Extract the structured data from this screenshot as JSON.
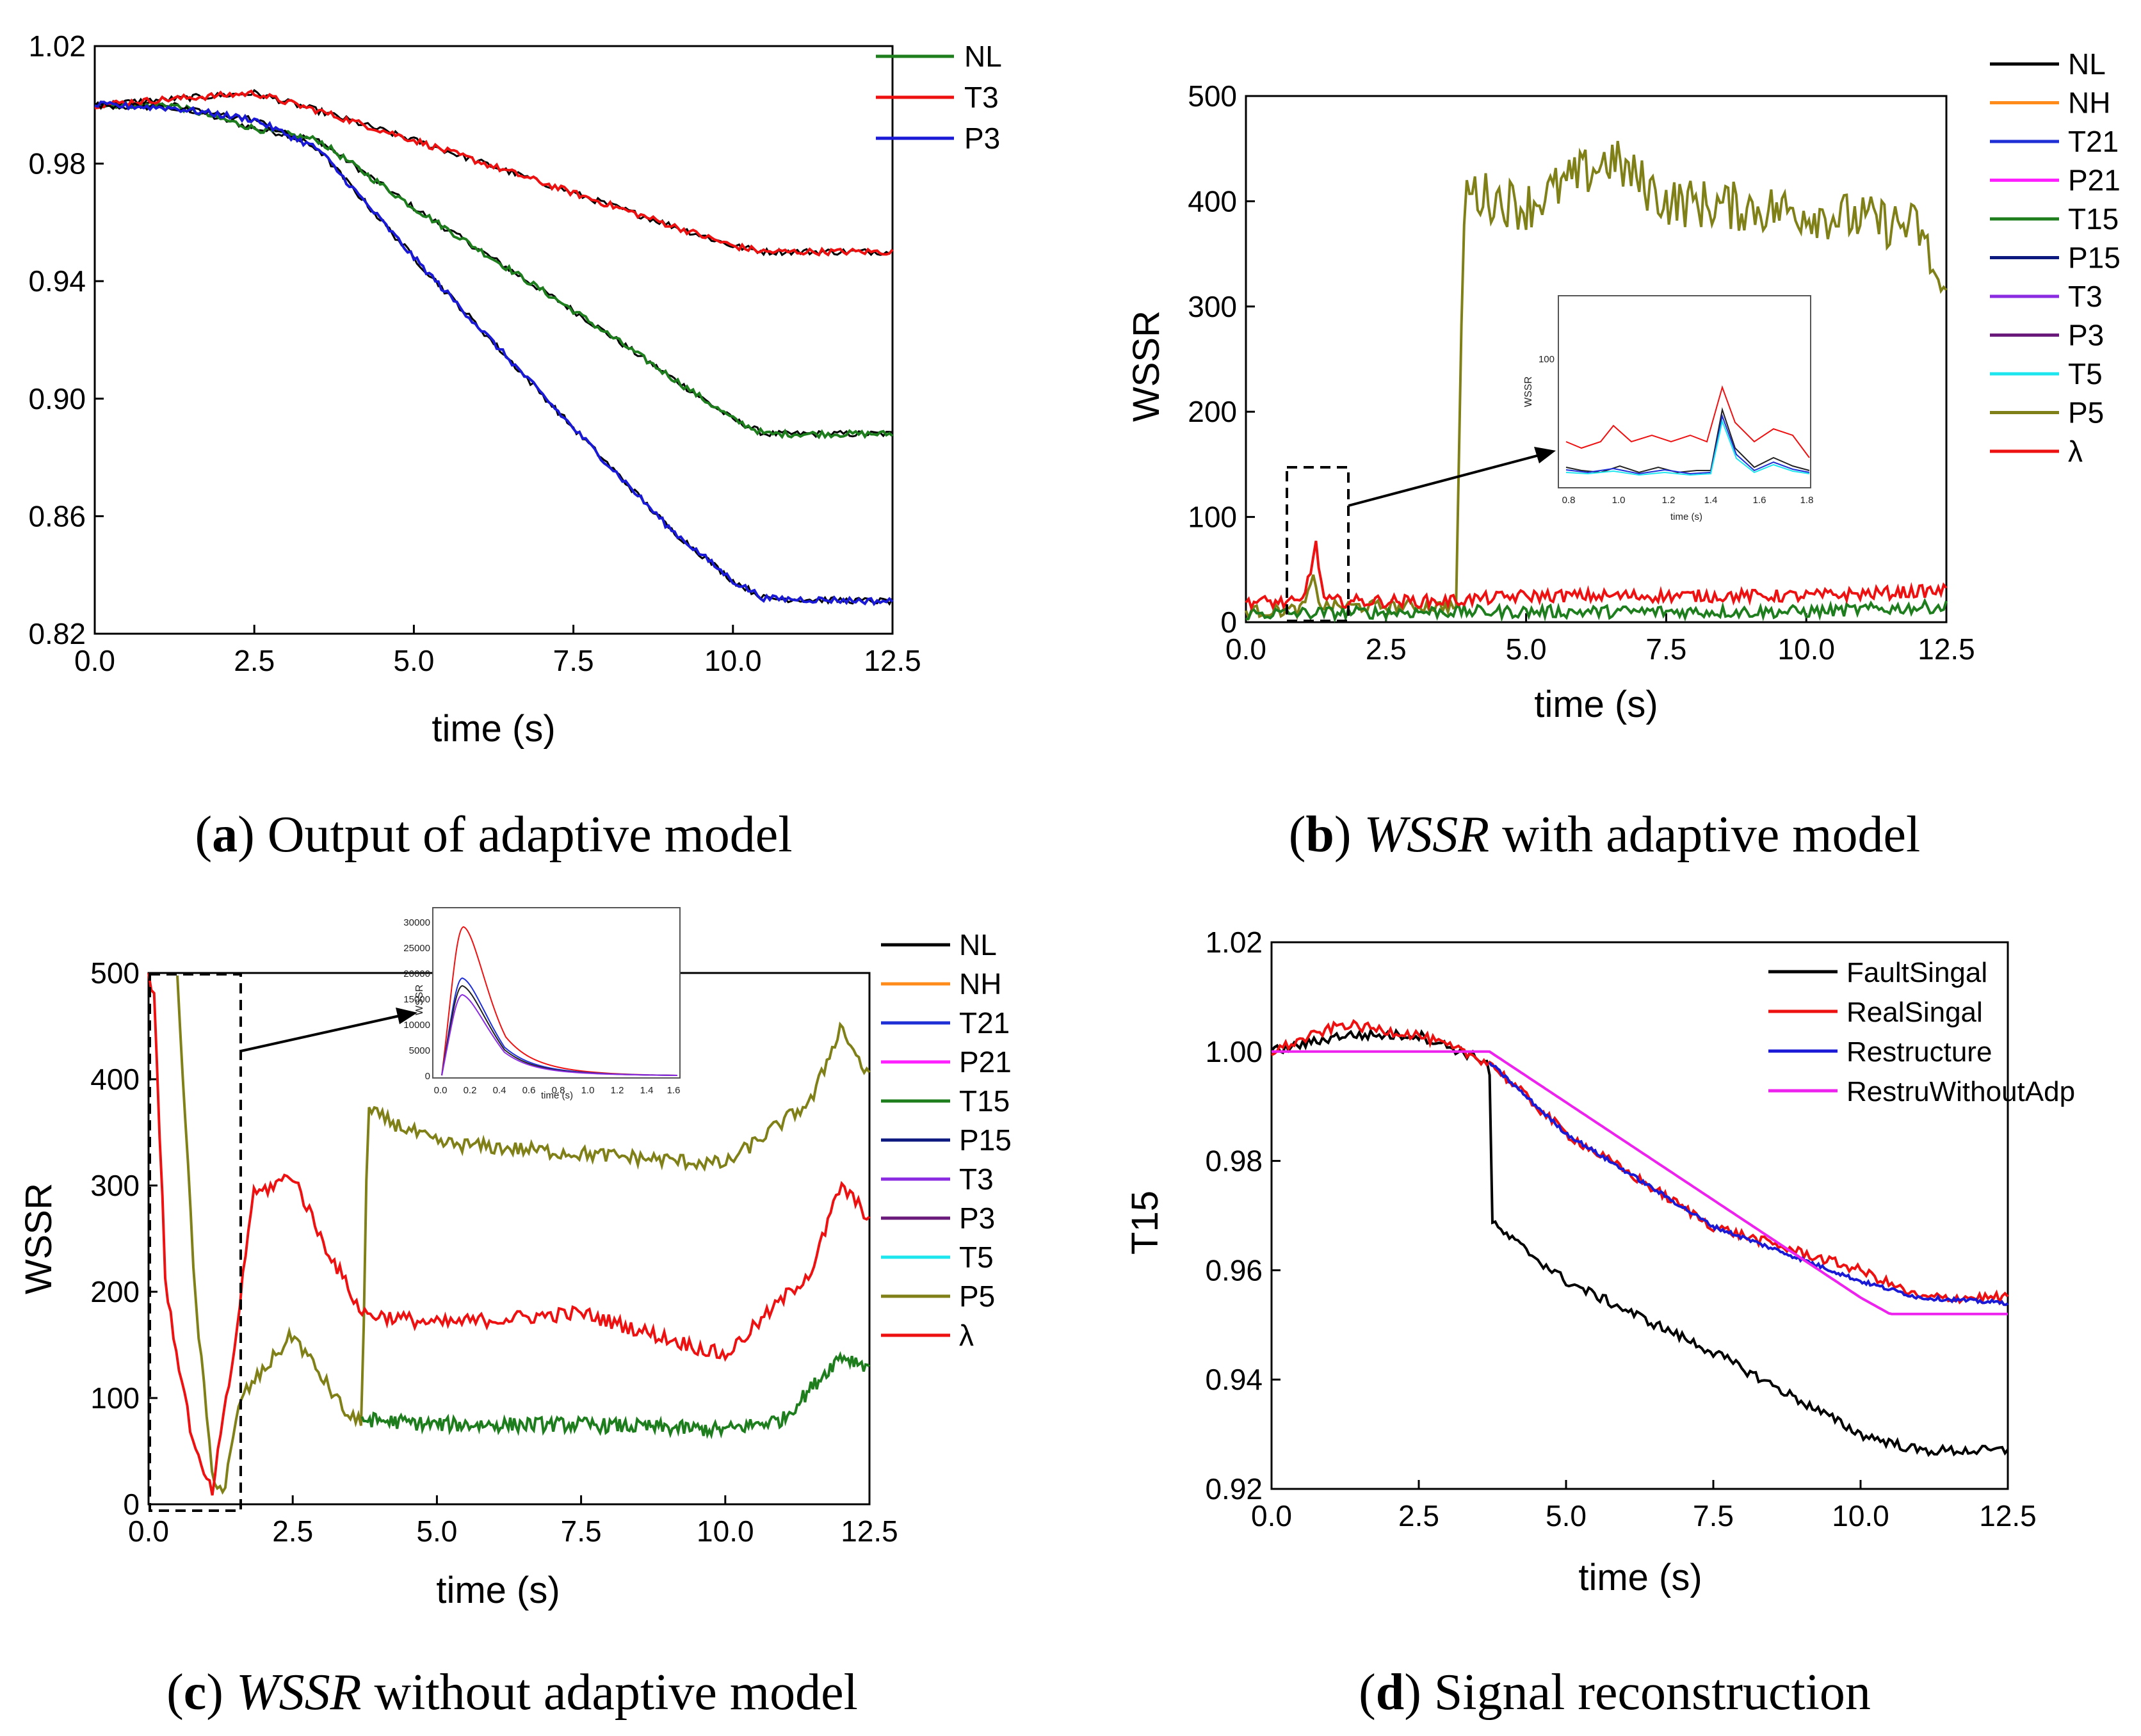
{
  "colors": {
    "NL": "#000000",
    "NH": "#ff8c1a",
    "T21": "#1f2fd6",
    "P21": "#ff20ff",
    "T15": "#1e7e1e",
    "P15": "#0c1a80",
    "T3": "#8a2be2",
    "P3": "#6a1a7a",
    "T5": "#1ee6ee",
    "P5": "#808018",
    "lambda": "#ee1111",
    "red": "#ee1111",
    "green": "#1e7e1e",
    "blue": "#1a1ad6",
    "magenta": "#ee22ee"
  },
  "chart_data": [
    {
      "id": "a",
      "type": "line",
      "caption": {
        "letter": "a",
        "text": "Output of adaptive model"
      },
      "xlabel": "time (s)",
      "ylabel": "",
      "xlim": [
        0,
        12.5
      ],
      "ylim": [
        0.82,
        1.02
      ],
      "xticks": [
        "0.0",
        "2.5",
        "5.0",
        "7.5",
        "10.0",
        "12.5"
      ],
      "yticks": [
        "0.82",
        "0.86",
        "0.90",
        "0.94",
        "0.98",
        "1.02"
      ],
      "legend": {
        "position": "top-right",
        "entries": [
          "NL",
          "T3",
          "P3"
        ]
      },
      "series": [
        {
          "name": "NL",
          "color": "#1e7e1e",
          "x": [
            0,
            1.2,
            2.5,
            3.5,
            5,
            7.5,
            10,
            10.5,
            12.5
          ],
          "y": [
            1.0,
            1.0,
            0.992,
            0.988,
            0.965,
            0.93,
            0.893,
            0.888,
            0.888
          ]
        },
        {
          "name": "T3",
          "color": "#ee1111",
          "x": [
            0,
            1.2,
            2.5,
            3.5,
            5,
            7.5,
            10,
            10.5,
            12.5
          ],
          "y": [
            1.0,
            1.002,
            1.004,
            0.998,
            0.988,
            0.97,
            0.952,
            0.95,
            0.95
          ]
        },
        {
          "name": "P3",
          "color": "#1a1ad6",
          "x": [
            0,
            1.2,
            2.5,
            3.5,
            5,
            7.5,
            9,
            10,
            10.5,
            12.5
          ],
          "y": [
            1.0,
            0.999,
            0.995,
            0.985,
            0.948,
            0.89,
            0.856,
            0.838,
            0.832,
            0.831
          ]
        }
      ]
    },
    {
      "id": "b",
      "type": "line",
      "caption": {
        "letter": "b",
        "italic": "WSSR",
        "text": "with adaptive model"
      },
      "xlabel": "time (s)",
      "ylabel": "WSSR",
      "xlim": [
        0,
        12.5
      ],
      "ylim": [
        0,
        500
      ],
      "xticks": [
        "0.0",
        "2.5",
        "5.0",
        "7.5",
        "10.0",
        "12.5"
      ],
      "yticks": [
        "0",
        "100",
        "200",
        "300",
        "400",
        "500"
      ],
      "legend": {
        "position": "right",
        "entries": [
          "NL",
          "NH",
          "T21",
          "P21",
          "T15",
          "P15",
          "T3",
          "P3",
          "T5",
          "P5",
          "λ"
        ]
      },
      "series": [
        {
          "name": "P5",
          "color": "#808018",
          "x": [
            0,
            1.0,
            1.2,
            1.35,
            3.5,
            3.75,
            3.9,
            5,
            6.5,
            7.5,
            10,
            12,
            12.5
          ],
          "y": [
            10,
            12,
            40,
            15,
            15,
            15,
            410,
            395,
            440,
            400,
            390,
            375,
            300
          ]
        },
        {
          "name": "T15",
          "color": "#1e7e1e",
          "x": [
            0,
            3.5,
            5,
            7.5,
            10,
            12.5
          ],
          "y": [
            8,
            10,
            10,
            10,
            10,
            15
          ]
        },
        {
          "name": "λ",
          "color": "#ee1111",
          "x": [
            0,
            1.0,
            1.25,
            1.4,
            3.5,
            5,
            7.5,
            10,
            12.5
          ],
          "y": [
            20,
            18,
            72,
            20,
            20,
            25,
            25,
            25,
            30
          ]
        }
      ],
      "inset": {
        "xticks": [
          "0.8",
          "1.0",
          "1.2",
          "1.4",
          "1.6",
          "1.8"
        ],
        "yticks": [
          "100"
        ],
        "xlabel": "time (s)",
        "ylabel": "WSSR"
      }
    },
    {
      "id": "c",
      "type": "line",
      "caption": {
        "letter": "c",
        "italic": "WSSR",
        "text": "without adaptive model"
      },
      "xlabel": "time (s)",
      "ylabel": "WSSR",
      "xlim": [
        0,
        12.5
      ],
      "ylim": [
        0,
        500
      ],
      "xticks": [
        "0.0",
        "2.5",
        "5.0",
        "7.5",
        "10.0",
        "12.5"
      ],
      "yticks": [
        "0",
        "100",
        "200",
        "300",
        "400",
        "500"
      ],
      "legend": {
        "position": "right",
        "entries": [
          "NL",
          "NH",
          "T21",
          "P21",
          "T15",
          "P15",
          "T3",
          "P3",
          "T5",
          "P5",
          "λ"
        ]
      },
      "series": [
        {
          "name": "P5",
          "color": "#808018",
          "x": [
            0.5,
            0.8,
            1.1,
            1.3,
            1.6,
            2.5,
            3.5,
            3.7,
            3.8,
            5,
            7.5,
            10,
            11.5,
            12,
            12.5
          ],
          "y": [
            500,
            200,
            30,
            10,
            100,
            160,
            80,
            80,
            370,
            340,
            330,
            320,
            380,
            450,
            400
          ]
        },
        {
          "name": "T15",
          "color": "#1e7e1e",
          "x": [
            3.7,
            5,
            7.5,
            10,
            11,
            12,
            12.5
          ],
          "y": [
            80,
            75,
            75,
            70,
            80,
            140,
            130
          ]
        },
        {
          "name": "λ",
          "color": "#ee1111",
          "x": [
            0,
            0.1,
            0.3,
            0.8,
            1.1,
            1.5,
            1.8,
            2.5,
            3.0,
            3.7,
            5,
            7.5,
            10,
            11.5,
            12,
            12.5
          ],
          "y": [
            500,
            480,
            200,
            50,
            10,
            150,
            290,
            310,
            250,
            180,
            170,
            180,
            140,
            220,
            300,
            270
          ]
        }
      ],
      "inset": {
        "xticks": [
          "0.0",
          "0.2",
          "0.4",
          "0.6",
          "0.8",
          "1.0",
          "1.2",
          "1.4",
          "1.6"
        ],
        "yticks": [
          "0",
          "5000",
          "10000",
          "15000",
          "20000",
          "25000",
          "30000"
        ],
        "xlabel": "time (s)",
        "ylabel": "WSSR"
      }
    },
    {
      "id": "d",
      "type": "line",
      "caption": {
        "letter": "d",
        "text": "Signal reconstruction"
      },
      "xlabel": "time (s)",
      "ylabel": "T15",
      "xlim": [
        0,
        12.5
      ],
      "ylim": [
        0.92,
        1.02
      ],
      "xticks": [
        "0.0",
        "2.5",
        "5.0",
        "7.5",
        "10.0",
        "12.5"
      ],
      "yticks": [
        "0.92",
        "0.94",
        "0.96",
        "0.98",
        "1.00",
        "1.02"
      ],
      "legend": {
        "position": "top-right",
        "entries": [
          "FaultSingal",
          "RealSingal",
          "Restructure",
          "RestruWithoutAdp"
        ]
      },
      "series": [
        {
          "name": "FaultSingal",
          "color": "#000000",
          "x": [
            0,
            1.2,
            2.5,
            3.7,
            3.72,
            3.8,
            5,
            7.5,
            10,
            11,
            12.5
          ],
          "y": [
            1.0,
            1.003,
            1.003,
            0.998,
            0.97,
            0.968,
            0.958,
            0.945,
            0.93,
            0.927,
            0.927
          ]
        },
        {
          "name": "RealSingal",
          "color": "#ee1111",
          "x": [
            0,
            1.2,
            2.5,
            3.7,
            5,
            7.5,
            10,
            11,
            12.5
          ],
          "y": [
            1.0,
            1.005,
            1.003,
            0.998,
            0.985,
            0.968,
            0.96,
            0.955,
            0.955
          ]
        },
        {
          "name": "Restructure",
          "color": "#1a1ad6",
          "x": [
            3.7,
            5,
            7.5,
            10,
            11,
            12.5
          ],
          "y": [
            0.998,
            0.985,
            0.968,
            0.958,
            0.955,
            0.954
          ]
        },
        {
          "name": "RestruWithoutAdp",
          "color": "#ee22ee",
          "x": [
            0,
            3.7,
            10,
            10.5,
            12.5
          ],
          "y": [
            1.0,
            1.0,
            0.955,
            0.952,
            0.952
          ]
        }
      ]
    }
  ]
}
